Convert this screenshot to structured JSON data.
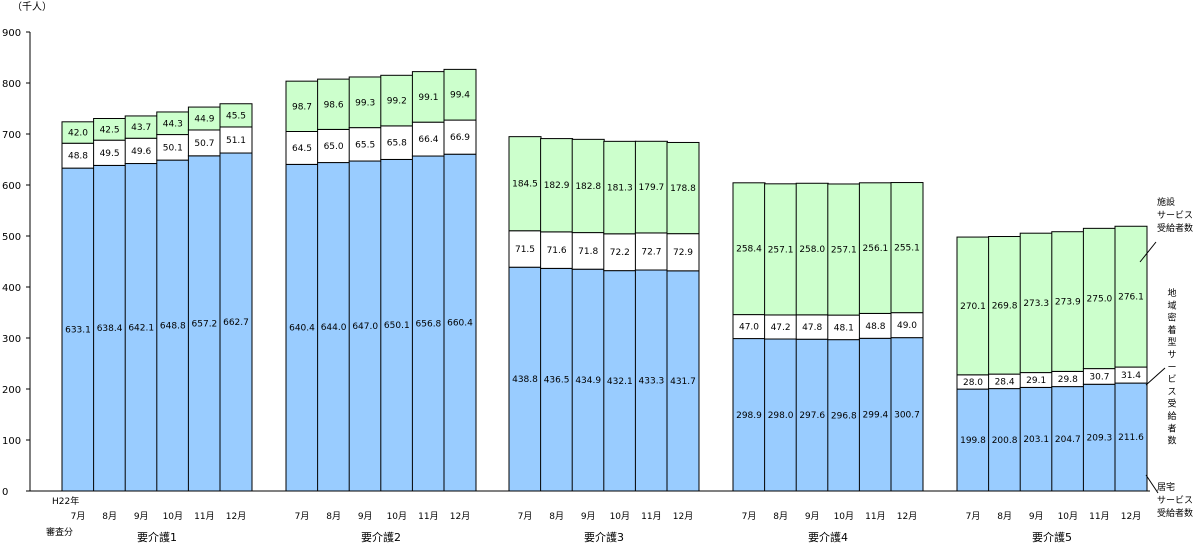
{
  "chart_data": {
    "type": "bar",
    "stacked": true,
    "unit": "（千人）",
    "ylim": [
      0,
      900
    ],
    "yticks": [
      "0",
      "100",
      "200",
      "300",
      "400",
      "500",
      "600",
      "700",
      "800",
      "900"
    ],
    "first_month_prefix": "H22年",
    "footnote": "審査分",
    "months": [
      "7月",
      "8月",
      "9月",
      "10月",
      "11月",
      "12月"
    ],
    "groups": [
      {
        "name": "要介護1",
        "kyotaku": [
          633.1,
          638.4,
          642.1,
          648.8,
          657.2,
          662.7
        ],
        "chiiki": [
          48.8,
          49.5,
          49.6,
          50.1,
          50.7,
          51.1
        ],
        "shisetsu": [
          42.0,
          42.5,
          43.7,
          44.3,
          44.9,
          45.5
        ]
      },
      {
        "name": "要介護2",
        "kyotaku": [
          640.4,
          644.0,
          647.0,
          650.1,
          656.8,
          660.4
        ],
        "chiiki": [
          64.5,
          65.0,
          65.5,
          65.8,
          66.4,
          66.9
        ],
        "shisetsu": [
          98.7,
          98.6,
          99.3,
          99.2,
          99.1,
          99.4
        ]
      },
      {
        "name": "要介護3",
        "kyotaku": [
          438.8,
          436.5,
          434.9,
          432.1,
          433.3,
          431.7
        ],
        "chiiki": [
          71.5,
          71.6,
          71.8,
          72.2,
          72.7,
          72.9
        ],
        "shisetsu": [
          184.5,
          182.9,
          182.8,
          181.3,
          179.7,
          178.8
        ]
      },
      {
        "name": "要介護4",
        "kyotaku": [
          298.9,
          298.0,
          297.6,
          296.8,
          299.4,
          300.7
        ],
        "chiiki": [
          47.0,
          47.2,
          47.8,
          48.1,
          48.8,
          49.0
        ],
        "shisetsu": [
          258.4,
          257.1,
          258.0,
          257.1,
          256.1,
          255.1
        ]
      },
      {
        "name": "要介護5",
        "kyotaku": [
          199.8,
          200.8,
          203.1,
          204.7,
          209.3,
          211.6
        ],
        "chiiki": [
          28.0,
          28.4,
          29.1,
          29.8,
          30.7,
          31.4
        ],
        "shisetsu": [
          270.1,
          269.8,
          273.3,
          273.9,
          275.0,
          276.1
        ]
      }
    ],
    "series": [
      {
        "key": "kyotaku",
        "name": "居宅サービス受給者数",
        "color": "#99ccff"
      },
      {
        "key": "chiiki",
        "name": "地域密着型サービス受給者数",
        "color": "#ffffff"
      },
      {
        "key": "shisetsu",
        "name": "施設サービス受給者数",
        "color": "#ccffcc"
      }
    ],
    "legend": [
      {
        "lines": [
          "施設",
          "サービス",
          "受給者数"
        ]
      },
      {
        "lines": [
          "地域密着型サービス受給者数"
        ]
      },
      {
        "lines": [
          "居宅",
          "サービス",
          "受給者数"
        ]
      }
    ]
  }
}
